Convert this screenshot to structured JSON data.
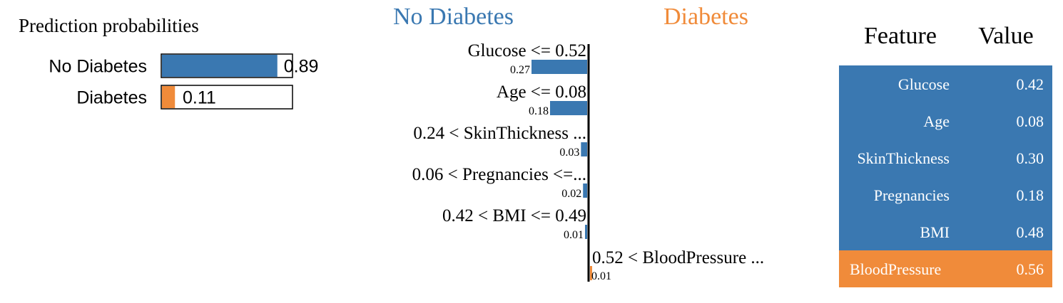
{
  "colors": {
    "negative": "#3a78b1",
    "positive": "#f08b3a",
    "table_text": "#ffffff",
    "text": "#000000"
  },
  "prediction": {
    "title": "Prediction probabilities",
    "classes": [
      {
        "label": "No Diabetes",
        "value": 0.89,
        "value_label": "0.89",
        "color": "#3a78b1"
      },
      {
        "label": "Diabetes",
        "value": 0.11,
        "value_label": "0.11",
        "color": "#f08b3a"
      }
    ]
  },
  "explanation": {
    "negative_label": "No Diabetes",
    "positive_label": "Diabetes"
  },
  "table": {
    "headers": [
      "Feature",
      "Value"
    ],
    "rows": [
      {
        "feature": "Glucose",
        "value": "0.42",
        "side": "negative"
      },
      {
        "feature": "Age",
        "value": "0.08",
        "side": "negative"
      },
      {
        "feature": "SkinThickness",
        "value": "0.30",
        "side": "negative"
      },
      {
        "feature": "Pregnancies",
        "value": "0.18",
        "side": "negative"
      },
      {
        "feature": "BMI",
        "value": "0.48",
        "side": "negative"
      },
      {
        "feature": "BloodPressure",
        "value": "0.56",
        "side": "positive"
      }
    ]
  },
  "chart_data": [
    {
      "type": "bar",
      "title": "Prediction probabilities",
      "categories": [
        "No Diabetes",
        "Diabetes"
      ],
      "values": [
        0.89,
        0.11
      ],
      "xlim": [
        0,
        1
      ]
    },
    {
      "type": "bar",
      "orientation": "horizontal-diverging",
      "categories": [
        "Glucose <= 0.52",
        "Age <= 0.08",
        "0.24 < SkinThickness ...",
        "0.06 < Pregnancies <=...",
        "0.42 < BMI <= 0.49",
        "0.52 < BloodPressure ..."
      ],
      "series": [
        {
          "name": "No Diabetes",
          "values": [
            0.27,
            0.18,
            0.03,
            0.02,
            0.01,
            0
          ]
        },
        {
          "name": "Diabetes",
          "values": [
            0,
            0,
            0,
            0,
            0,
            0.01
          ]
        }
      ],
      "value_labels": [
        "0.27",
        "0.18",
        "0.03",
        "0.02",
        "0.01",
        "0.01"
      ],
      "sides": [
        "negative",
        "negative",
        "negative",
        "negative",
        "negative",
        "positive"
      ]
    }
  ]
}
